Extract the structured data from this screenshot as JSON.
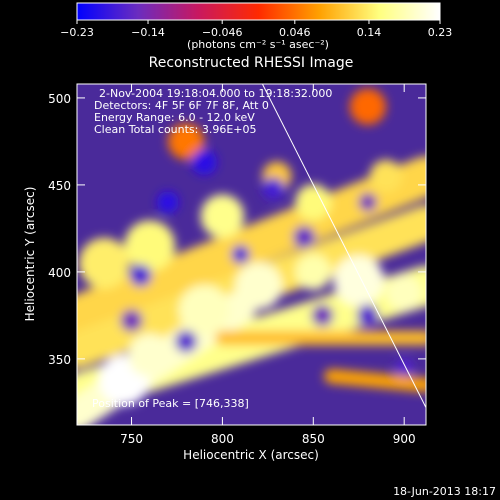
{
  "chart_data": {
    "type": "heatmap",
    "title": "Reconstructed RHESSI Image",
    "xlabel": "Heliocentric X (arcsec)",
    "ylabel": "Heliocentric Y (arcsec)",
    "xlim": [
      720,
      912
    ],
    "ylim": [
      312,
      508
    ],
    "x_ticks": [
      750,
      800,
      850,
      900
    ],
    "y_ticks": [
      350,
      400,
      450,
      500
    ],
    "colorbar": {
      "min": -0.23,
      "max": 0.23,
      "ticks": [
        -0.23,
        -0.14,
        -0.046,
        0.046,
        0.14,
        0.23
      ],
      "tick_labels": [
        "−0.23",
        "−0.14",
        "−0.046",
        "0.046",
        "0.14",
        "0.23"
      ],
      "unit_label": "(photons cm⁻² s⁻¹ asec⁻²)",
      "colors": [
        "#0000ff",
        "#6a2cc0",
        "#c81860",
        "#ff2a00",
        "#ffa000",
        "#ffff80",
        "#ffffff"
      ]
    },
    "annotations": [
      "2-Nov-2004 19:18:04.000 to 19:18:32.000",
      "Detectors: 4F 5F 6F 7F 8F, Att 0",
      "Energy Range: 6.0 - 12.0 keV",
      "Clean     Total counts: 3.96E+05"
    ],
    "peak_label": "Position of Peak = [746,338]",
    "peak_position": [
      746,
      338
    ],
    "limb_line": [
      [
        822,
        508
      ],
      [
        912,
        322
      ]
    ],
    "bands": [
      {
        "x0": 720,
        "y0": 375,
        "x1": 912,
        "y1": 455,
        "width": 22,
        "value": 0.12
      },
      {
        "x0": 720,
        "y0": 355,
        "x1": 912,
        "y1": 428,
        "width": 20,
        "value": 0.13
      },
      {
        "x0": 720,
        "y0": 330,
        "x1": 912,
        "y1": 392,
        "width": 22,
        "value": 0.16
      },
      {
        "x0": 720,
        "y0": 318,
        "x1": 810,
        "y1": 380,
        "width": 18,
        "value": 0.2
      },
      {
        "x0": 800,
        "y0": 362,
        "x1": 912,
        "y1": 362,
        "width": 8,
        "value": 0.1
      },
      {
        "x0": 860,
        "y0": 340,
        "x1": 912,
        "y1": 335,
        "width": 8,
        "value": 0.08
      }
    ],
    "blobs": [
      {
        "x": 746,
        "y": 338,
        "r": 14,
        "value": 0.23
      },
      {
        "x": 760,
        "y": 352,
        "r": 12,
        "value": 0.2
      },
      {
        "x": 790,
        "y": 378,
        "r": 14,
        "value": 0.19
      },
      {
        "x": 820,
        "y": 392,
        "r": 13,
        "value": 0.2
      },
      {
        "x": 850,
        "y": 400,
        "r": 10,
        "value": 0.18
      },
      {
        "x": 875,
        "y": 395,
        "r": 14,
        "value": 0.21
      },
      {
        "x": 900,
        "y": 388,
        "r": 10,
        "value": 0.19
      },
      {
        "x": 800,
        "y": 432,
        "r": 12,
        "value": 0.16
      },
      {
        "x": 850,
        "y": 440,
        "r": 10,
        "value": 0.15
      },
      {
        "x": 760,
        "y": 415,
        "r": 14,
        "value": 0.15
      },
      {
        "x": 735,
        "y": 405,
        "r": 14,
        "value": 0.14
      },
      {
        "x": 890,
        "y": 455,
        "r": 9,
        "value": 0.13
      },
      {
        "x": 830,
        "y": 455,
        "r": 8,
        "value": 0.11
      },
      {
        "x": 780,
        "y": 475,
        "r": 10,
        "value": 0.05
      },
      {
        "x": 880,
        "y": 495,
        "r": 10,
        "value": 0.04
      },
      {
        "x": 770,
        "y": 440,
        "r": 6,
        "value": -0.2
      },
      {
        "x": 790,
        "y": 463,
        "r": 7,
        "value": -0.2
      },
      {
        "x": 828,
        "y": 448,
        "r": 6,
        "value": -0.18
      },
      {
        "x": 755,
        "y": 398,
        "r": 6,
        "value": -0.18
      },
      {
        "x": 810,
        "y": 410,
        "r": 5,
        "value": -0.18
      },
      {
        "x": 750,
        "y": 372,
        "r": 6,
        "value": -0.15
      },
      {
        "x": 780,
        "y": 360,
        "r": 6,
        "value": -0.17
      },
      {
        "x": 855,
        "y": 375,
        "r": 6,
        "value": -0.15
      },
      {
        "x": 880,
        "y": 375,
        "r": 6,
        "value": -0.17
      },
      {
        "x": 845,
        "y": 420,
        "r": 6,
        "value": -0.16
      },
      {
        "x": 900,
        "y": 345,
        "r": 5,
        "value": -0.17
      },
      {
        "x": 880,
        "y": 440,
        "r": 5,
        "value": -0.15
      }
    ]
  },
  "footer": {
    "timestamp": "18-Jun-2013 18:17"
  }
}
